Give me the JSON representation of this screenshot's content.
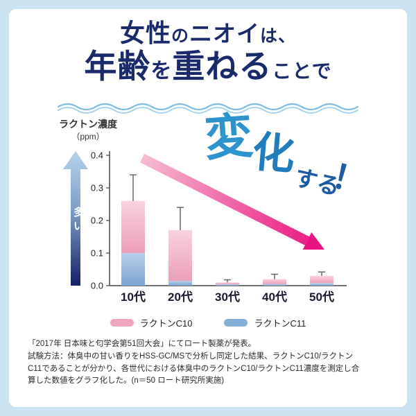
{
  "colors": {
    "outer_bg": "#cbe3f1",
    "card_bg": "#ffffff",
    "navy": "#1b2a6b",
    "pink_c10": "#f0a6c0",
    "blue_c11": "#85b0da",
    "arrow_gradient_start": "#f6bcd1",
    "arrow_gradient_end": "#e81380"
  },
  "header": {
    "l1a": "女性",
    "l1b": "の",
    "l1c": "ニオイ",
    "l1d": "は、",
    "l2a": "年齢",
    "l2b": "を",
    "l2c": "重ねる",
    "l2d": "ことで"
  },
  "overlay": {
    "char1": "変",
    "char2": "化",
    "suru": "する",
    "excl": "！"
  },
  "chart_data": {
    "type": "bar",
    "stacked": true,
    "ylabel_line1": "ラクトン濃度",
    "ylabel_line2": "（ppm）",
    "more_label": "多い",
    "categories": [
      "10代",
      "20代",
      "30代",
      "40代",
      "50代"
    ],
    "series": [
      {
        "name": "ラクトンC11",
        "color": "#85b0da",
        "values": [
          0.1,
          0.015,
          0.004,
          0.005,
          0.008
        ]
      },
      {
        "name": "ラクトンC10",
        "color": "#f0a6c0",
        "values": [
          0.16,
          0.155,
          0.006,
          0.015,
          0.022
        ]
      }
    ],
    "error_top": [
      0.34,
      0.24,
      0.018,
      0.035,
      0.042
    ],
    "ylim": [
      0,
      0.4
    ],
    "yticks": [
      0,
      0.1,
      0.2,
      0.3,
      0.4
    ],
    "grid": false,
    "legend_position": "bottom",
    "legend": [
      {
        "label": "ラクトンC10",
        "color": "#f0a6c0"
      },
      {
        "label": "ラクトンC11",
        "color": "#85b0da"
      }
    ]
  },
  "footnote": "「2017年 日本味と匂学会第51回大会」にてロート製薬が発表。\n試験方法：体臭中の甘い香りをHSS-GC/MSで分析し同定した結果、ラクトンC10/ラクトン\nC11であることが分かり、各世代における体臭中のラクトンC10/ラクトンC11濃度を測定し合\n算した数値をグラフ化した。(n＝50 ロート研究所実施)"
}
